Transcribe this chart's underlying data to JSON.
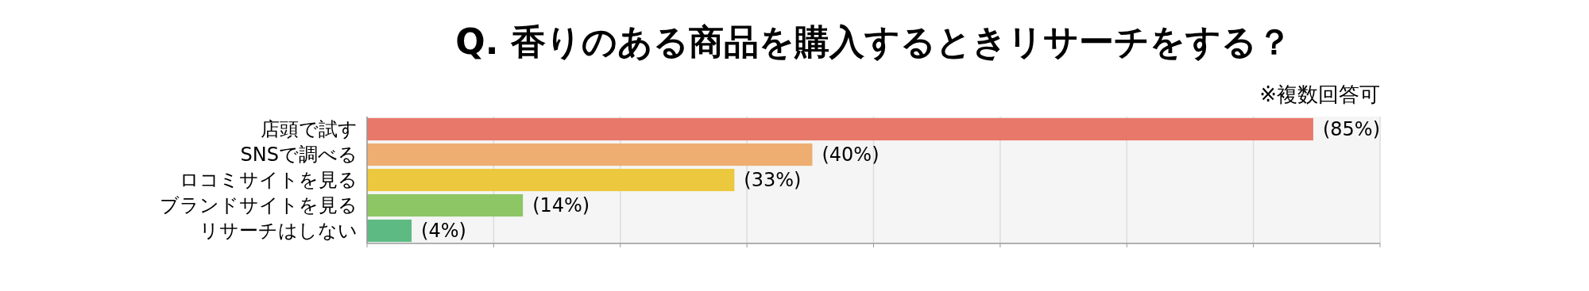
{
  "chart_data": {
    "type": "bar",
    "orientation": "horizontal",
    "title": "Q. 香りのある商品を購入するときリサーチをする？",
    "annotations": [
      "※複数回答可"
    ],
    "categories": [
      "店頭で試す",
      "SNSで調べる",
      "ロコミサイトを見る",
      "ブランドサイトを見る",
      "リサーチはしない"
    ],
    "values": [
      85,
      40,
      33,
      14,
      4
    ],
    "colors": [
      "#e8786a",
      "#eeae72",
      "#ecc83f",
      "#8dc665",
      "#5dba82"
    ],
    "value_labels": [
      "(85%)",
      "(40%)",
      "(33%)",
      "(14%)",
      "(4%)"
    ],
    "xlim": [
      0,
      91
    ],
    "xticks": [
      {
        "value": 0,
        "label": null
      },
      {
        "value": 11.375,
        "label": null
      },
      {
        "value": 22.75,
        "label": null
      },
      {
        "value": 34.125,
        "label": null
      },
      {
        "value": 45.5,
        "label": null
      },
      {
        "value": 56.875,
        "label": null
      },
      {
        "value": 68.25,
        "label": null
      },
      {
        "value": 79.625,
        "label": null
      },
      {
        "value": 91,
        "label": null
      }
    ],
    "grid": "x",
    "tick_labels": "y"
  }
}
